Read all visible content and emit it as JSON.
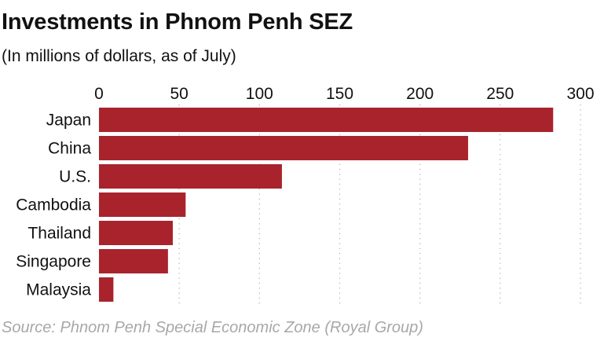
{
  "header": {
    "title": "Investments in Phnom Penh SEZ",
    "subtitle": "(In millions of dollars, as of July)"
  },
  "footer": {
    "source": "Source: Phnom Penh Special Economic Zone (Royal Group)"
  },
  "colors": {
    "bar": "#a9232d",
    "grid": "#b5b5b5",
    "source_text": "#a8a8a8"
  },
  "chart_data": {
    "type": "bar",
    "orientation": "horizontal",
    "title": "Investments in Phnom Penh SEZ",
    "subtitle": "(In millions of dollars, as of July)",
    "categories": [
      "Japan",
      "China",
      "U.S.",
      "Cambodia",
      "Thailand",
      "Singapore",
      "Malaysia"
    ],
    "values": [
      283,
      230,
      114,
      54,
      46,
      43,
      9
    ],
    "xlim": [
      0,
      300
    ],
    "xticks": [
      0,
      50,
      100,
      150,
      200,
      250,
      300
    ],
    "xtick_labels": [
      "0",
      "50",
      "100",
      "150",
      "200",
      "250",
      "300"
    ],
    "xaxis_position": "top",
    "grid": "vertical-dotted",
    "xlabel": "",
    "ylabel": ""
  }
}
